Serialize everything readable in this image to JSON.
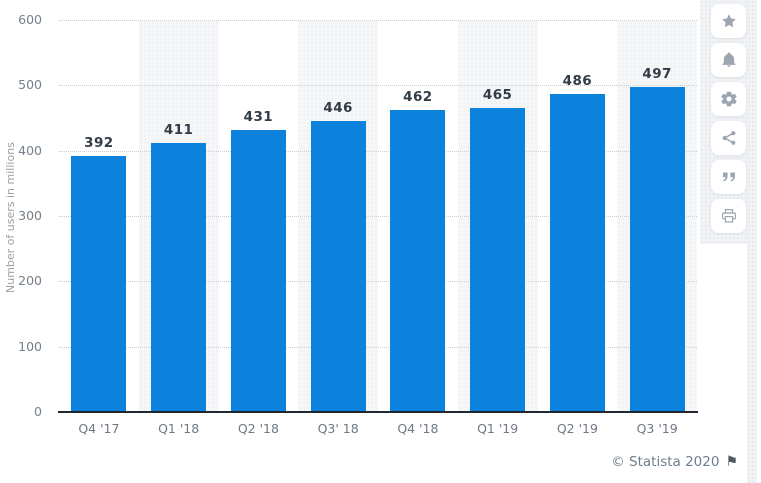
{
  "chart_data": {
    "type": "bar",
    "categories": [
      "Q4 '17",
      "Q1 '18",
      "Q2 '18",
      "Q3' 18",
      "Q4 '18",
      "Q1 '19",
      "Q2 '19",
      "Q3 '19"
    ],
    "values": [
      392,
      411,
      431,
      446,
      462,
      465,
      486,
      497
    ],
    "title": "",
    "xlabel": "",
    "ylabel": "Number of users in millions",
    "ylim": [
      0,
      600
    ],
    "yticks": [
      0,
      100,
      200,
      300,
      400,
      500,
      600
    ],
    "grid": "horizontal-dotted",
    "legend": "none",
    "column_bands": "light band behind every 2nd category",
    "bar_color": "#0d82dc"
  },
  "footer": {
    "copyright": "© Statista 2020",
    "flag_icon": "flag-icon",
    "flag_glyph": "⚑"
  },
  "toolbar": {
    "items": [
      {
        "id": "favorite",
        "icon": "star-icon"
      },
      {
        "id": "alerts",
        "icon": "bell-icon"
      },
      {
        "id": "settings",
        "icon": "gear-icon"
      },
      {
        "id": "share",
        "icon": "share-icon"
      },
      {
        "id": "cite",
        "icon": "quote-icon"
      },
      {
        "id": "print",
        "icon": "printer-icon"
      }
    ]
  },
  "colors": {
    "bar": "#0d82dc",
    "axis_line": "#20272e",
    "tick_label": "#76808a",
    "x_label": "#6f7983",
    "value_label": "#323c46",
    "grid_line": "#c9ced3",
    "column_band": "#f6f7f9",
    "sidebar_bg": "#f1f3f6",
    "icon": "#9ca6b0",
    "copyright_text": "#6e7e8d"
  }
}
